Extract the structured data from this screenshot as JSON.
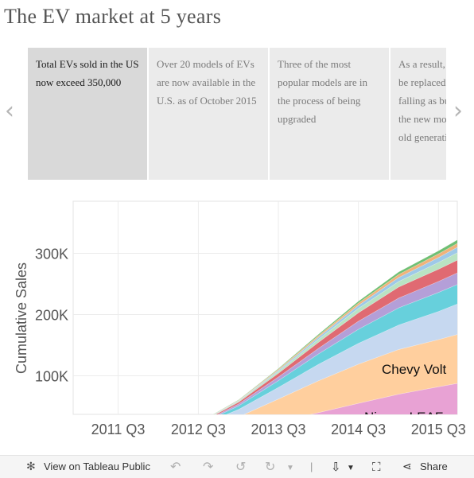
{
  "title": "The EV market at 5 years",
  "story_points": [
    "Total EVs sold in the US now exceed 350,000",
    "Over 20 models of EVs are now available in the U.S. as of October 2015",
    "Three of the most popular models are in the process of being upgraded",
    "As a result, these soon-to-be replaced models are falling as buyers wait for the new models and the old generation..."
  ],
  "nav": {
    "prev_icon": "‹",
    "next_icon": "›"
  },
  "chart_data": {
    "type": "area",
    "stacked": true,
    "ylabel": "Cumulative Sales",
    "yticks": [
      "100K",
      "200K",
      "300K"
    ],
    "ytick_values": [
      100000,
      200000,
      300000
    ],
    "xticks": [
      "2011 Q3",
      "2012 Q3",
      "2013 Q3",
      "2014 Q3",
      "2015 Q3"
    ],
    "x": [
      "2011-01",
      "2011-07",
      "2012-01",
      "2012-07",
      "2013-01",
      "2013-07",
      "2014-01",
      "2014-07",
      "2015-01",
      "2015-07",
      "2015-10"
    ],
    "visible_ylim": [
      37000,
      385000
    ],
    "grid": true,
    "series": [
      {
        "name": "Nissan LEAF",
        "color": "#e8a2d4",
        "values": [
          0,
          0,
          0,
          5000,
          13000,
          25000,
          40000,
          55000,
          70000,
          82000,
          88000
        ]
      },
      {
        "name": "Chevy Volt",
        "color": "#ffcf9e",
        "values": [
          0,
          0,
          0,
          8000,
          20000,
          37000,
          52000,
          64000,
          73000,
          77000,
          80000
        ]
      },
      {
        "name": "",
        "color": "#c6d8f0",
        "values": [
          0,
          0,
          0,
          5000,
          12000,
          19000,
          27000,
          34000,
          40000,
          46000,
          50000
        ]
      },
      {
        "name": "",
        "color": "#67d0dc",
        "values": [
          0,
          0,
          0,
          2000,
          6000,
          11000,
          17000,
          23000,
          28000,
          31000,
          32000
        ]
      },
      {
        "name": "",
        "color": "#b49fd8",
        "values": [
          0,
          0,
          0,
          1000,
          3000,
          6000,
          9000,
          13000,
          16000,
          18000,
          19000
        ]
      },
      {
        "name": "",
        "color": "#e06a72",
        "values": [
          0,
          0,
          0,
          1000,
          3000,
          6000,
          10000,
          14000,
          18000,
          20000,
          21000
        ]
      },
      {
        "name": "",
        "color": "#b9e3c3",
        "values": [
          0,
          0,
          0,
          500,
          1500,
          3000,
          5000,
          7000,
          9000,
          11000,
          12000
        ]
      },
      {
        "name": "",
        "color": "#9ec9e8",
        "values": [
          0,
          0,
          0,
          300,
          1000,
          2000,
          3500,
          5000,
          6500,
          8000,
          9000
        ]
      },
      {
        "name": "",
        "color": "#f0b27a",
        "values": [
          0,
          0,
          0,
          300,
          800,
          1600,
          2600,
          3800,
          5000,
          6000,
          6500
        ]
      },
      {
        "name": "",
        "color": "#6fbf73",
        "values": [
          0,
          0,
          0,
          200,
          600,
          1200,
          2000,
          3000,
          4000,
          5000,
          5500
        ]
      }
    ],
    "series_labels": [
      "Chevy Volt",
      "Nissan LEAF"
    ]
  },
  "toolbar": {
    "view_label": "View on Tableau Public",
    "share_label": "Share",
    "icons": [
      "tableau-icon",
      "undo-icon",
      "redo-icon",
      "revert-icon",
      "refresh-icon",
      "download-icon",
      "fullscreen-icon",
      "share-icon"
    ]
  }
}
